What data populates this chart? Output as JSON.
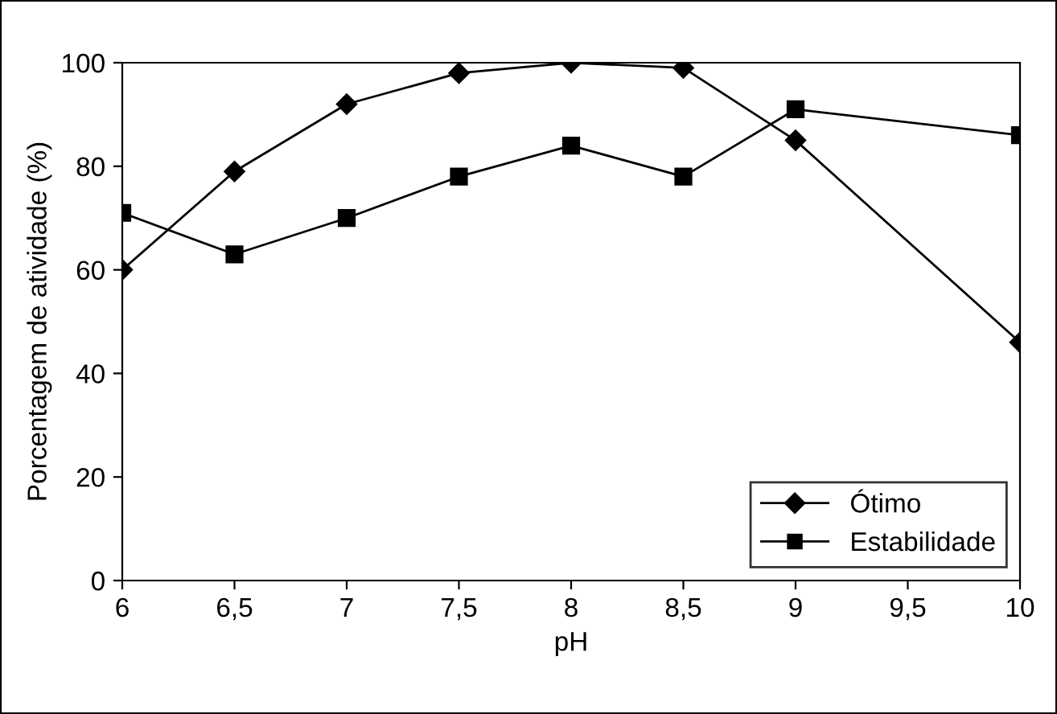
{
  "chart_data": {
    "type": "line",
    "xlabel": "pH",
    "ylabel": "Porcentagem de atividade (%)",
    "x": [
      6,
      6.5,
      7,
      7.5,
      8,
      8.5,
      9,
      10
    ],
    "series": [
      {
        "name": "Ótimo",
        "color": "#000000",
        "marker": "diamond",
        "values": [
          60,
          79,
          92,
          98,
          100,
          99,
          85,
          46
        ]
      },
      {
        "name": "Estabilidade",
        "color": "#000000",
        "marker": "square",
        "values": [
          71,
          63,
          70,
          78,
          84,
          78,
          91,
          86
        ]
      }
    ],
    "xlim": [
      6,
      10
    ],
    "xticks": [
      6,
      {
        "value": 6.5,
        "label": "6,5"
      },
      7,
      {
        "value": 7.5,
        "label": "7,5"
      },
      8,
      {
        "value": 8.5,
        "label": "8,5"
      },
      9,
      {
        "value": 9.5,
        "label": "9,5"
      },
      10
    ],
    "ylim": [
      0,
      100
    ],
    "yticks": [
      0,
      20,
      40,
      60,
      80,
      100
    ],
    "grid": false,
    "legend": "bottom right",
    "line_style": "solid"
  }
}
